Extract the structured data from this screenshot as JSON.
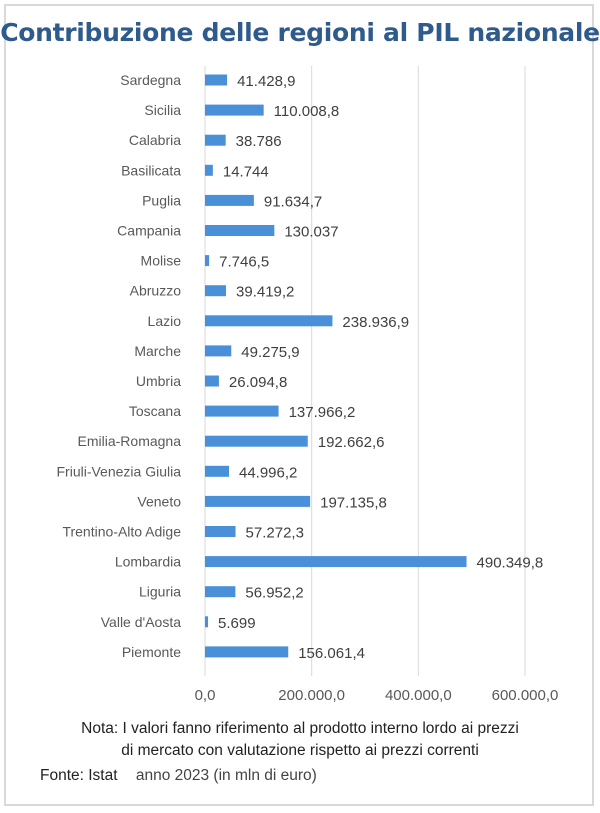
{
  "chart_data": {
    "type": "bar",
    "orientation": "horizontal",
    "title": "Contribuzione delle regioni al PIL nazionale",
    "categories": [
      "Sardegna",
      "Sicilia",
      "Calabria",
      "Basilicata",
      "Puglia",
      "Campania",
      "Molise",
      "Abruzzo",
      "Lazio",
      "Marche",
      "Umbria",
      "Toscana",
      "Emilia-Romagna",
      "Friuli-Venezia Giulia",
      "Veneto",
      "Trentino-Alto Adige",
      "Lombardia",
      "Liguria",
      "Valle d'Aosta",
      "Piemonte"
    ],
    "values": [
      41428.9,
      110008.8,
      38786,
      14744,
      91634.7,
      130037,
      7746.5,
      39419.2,
      238936.9,
      49275.9,
      26094.8,
      137966.2,
      192662.6,
      44996.2,
      197135.8,
      57272.3,
      490349.8,
      56952.2,
      5699,
      156061.4
    ],
    "value_labels": [
      "41.428,9",
      "110.008,8",
      "38.786",
      "14.744",
      "91.634,7",
      "130.037",
      "7.746,5",
      "39.419,2",
      "238.936,9",
      "49.275,9",
      "26.094,8",
      "137.966,2",
      "192.662,6",
      "44.996,2",
      "197.135,8",
      "57.272,3",
      "490.349,8",
      "56.952,2",
      "5.699",
      "156.061,4"
    ],
    "xticks": [
      0,
      200000,
      400000,
      600000
    ],
    "xtick_labels": [
      "0,0",
      "200.000,0",
      "400.000,0",
      "600.000,0"
    ],
    "xlim": [
      0,
      600000
    ],
    "grid": true,
    "bar_color": "#4a90d9"
  },
  "note": {
    "line1": "Nota: I valori fanno riferimento al prodotto interno lordo ai prezzi",
    "line2": "di mercato con valutazione rispetto ai prezzi correnti"
  },
  "source": {
    "label": "Fonte: Istat",
    "period": "anno 2023 (in mln di euro)"
  }
}
